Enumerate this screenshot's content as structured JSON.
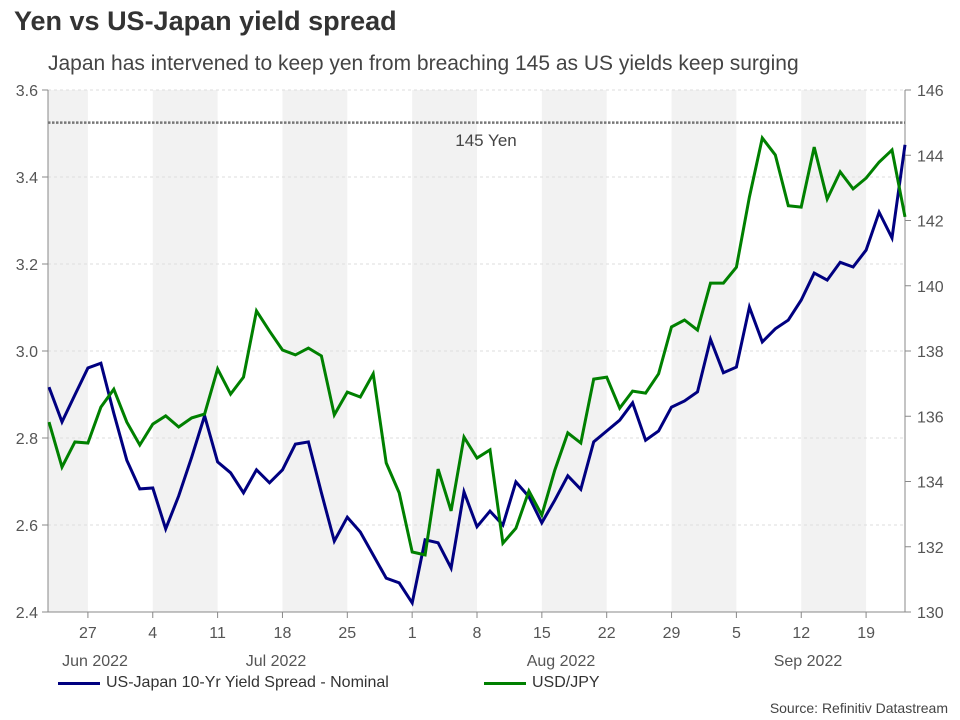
{
  "chart_data": {
    "type": "line",
    "title": "Yen vs US-Japan yield spread",
    "subtitle": "Japan has intervened to keep yen from breaching 145 as US yields keep surging",
    "source": "Source: Refinitiv Datastream",
    "x": [
      "2022-06-22",
      "2022-06-23",
      "2022-06-24",
      "2022-06-27",
      "2022-06-28",
      "2022-06-29",
      "2022-06-30",
      "2022-07-01",
      "2022-07-04",
      "2022-07-05",
      "2022-07-06",
      "2022-07-07",
      "2022-07-08",
      "2022-07-11",
      "2022-07-12",
      "2022-07-13",
      "2022-07-14",
      "2022-07-15",
      "2022-07-18",
      "2022-07-19",
      "2022-07-20",
      "2022-07-21",
      "2022-07-22",
      "2022-07-25",
      "2022-07-26",
      "2022-07-27",
      "2022-07-28",
      "2022-07-29",
      "2022-08-01",
      "2022-08-02",
      "2022-08-03",
      "2022-08-04",
      "2022-08-05",
      "2022-08-08",
      "2022-08-09",
      "2022-08-10",
      "2022-08-11",
      "2022-08-12",
      "2022-08-15",
      "2022-08-16",
      "2022-08-17",
      "2022-08-18",
      "2022-08-19",
      "2022-08-22",
      "2022-08-23",
      "2022-08-24",
      "2022-08-25",
      "2022-08-26",
      "2022-08-29",
      "2022-08-30",
      "2022-08-31",
      "2022-09-01",
      "2022-09-02",
      "2022-09-05",
      "2022-09-06",
      "2022-09-07",
      "2022-09-08",
      "2022-09-09",
      "2022-09-12",
      "2022-09-13",
      "2022-09-14",
      "2022-09-15",
      "2022-09-16",
      "2022-09-19",
      "2022-09-20",
      "2022-09-21",
      "2022-09-22"
    ],
    "x_tick_labels": [
      "27",
      "4",
      "11",
      "18",
      "25",
      "1",
      "8",
      "15",
      "22",
      "29",
      "5",
      "12",
      "19"
    ],
    "x_tick_dates": [
      "2022-06-27",
      "2022-07-04",
      "2022-07-11",
      "2022-07-18",
      "2022-07-25",
      "2022-08-01",
      "2022-08-08",
      "2022-08-15",
      "2022-08-22",
      "2022-08-29",
      "2022-09-05",
      "2022-09-12",
      "2022-09-19"
    ],
    "month_labels": [
      "Jun 2022",
      "Jul 2022",
      "Aug 2022",
      "Sep 2022"
    ],
    "y_left": {
      "ylim": [
        2.4,
        3.6
      ],
      "ticks": [
        "2.4",
        "2.6",
        "2.8",
        "3.0",
        "3.2",
        "3.4",
        "3.6"
      ]
    },
    "y_right": {
      "ylim": [
        130,
        146
      ],
      "ticks": [
        "130",
        "132",
        "134",
        "136",
        "138",
        "140",
        "142",
        "144",
        "146"
      ]
    },
    "reference_line": {
      "value": 145,
      "axis": "right",
      "label": "145 Yen"
    },
    "grid": true,
    "legend_placement": "bottom",
    "series": [
      {
        "name": "US-Japan 10-Yr Yield Spread - Nominal",
        "axis": "left",
        "color": "#000080",
        "values": [
          2.917,
          2.837,
          2.899,
          2.961,
          2.972,
          2.857,
          2.749,
          2.683,
          2.685,
          2.591,
          2.667,
          2.756,
          2.851,
          2.745,
          2.72,
          2.674,
          2.727,
          2.697,
          2.727,
          2.786,
          2.791,
          2.674,
          2.563,
          2.618,
          2.584,
          2.531,
          2.478,
          2.467,
          2.421,
          2.566,
          2.559,
          2.501,
          2.676,
          2.596,
          2.632,
          2.6,
          2.699,
          2.665,
          2.605,
          2.657,
          2.713,
          2.682,
          2.791,
          2.816,
          2.841,
          2.881,
          2.795,
          2.816,
          2.871,
          2.885,
          2.906,
          3.027,
          2.95,
          2.963,
          3.101,
          3.021,
          3.051,
          3.071,
          3.117,
          3.179,
          3.163,
          3.204,
          3.193,
          3.232,
          3.319,
          3.26,
          3.474
        ]
      },
      {
        "name": "USD/JPY",
        "axis": "right",
        "color": "#008000",
        "values": [
          135.82,
          134.44,
          135.21,
          135.18,
          136.28,
          136.83,
          135.82,
          135.12,
          135.76,
          136.01,
          135.67,
          135.95,
          136.07,
          137.45,
          136.68,
          137.2,
          139.23,
          138.61,
          138.03,
          137.88,
          138.09,
          137.85,
          136.04,
          136.74,
          136.59,
          137.3,
          134.57,
          133.65,
          131.84,
          131.75,
          134.38,
          133.1,
          135.36,
          134.72,
          134.97,
          132.11,
          132.57,
          133.71,
          132.97,
          134.35,
          135.49,
          135.18,
          137.14,
          137.2,
          136.25,
          136.77,
          136.71,
          137.3,
          138.74,
          138.95,
          138.64,
          140.08,
          140.08,
          140.57,
          142.72,
          144.53,
          144.01,
          142.45,
          142.41,
          144.25,
          142.66,
          143.49,
          142.97,
          143.3,
          143.79,
          144.16,
          142.11
        ]
      }
    ]
  }
}
